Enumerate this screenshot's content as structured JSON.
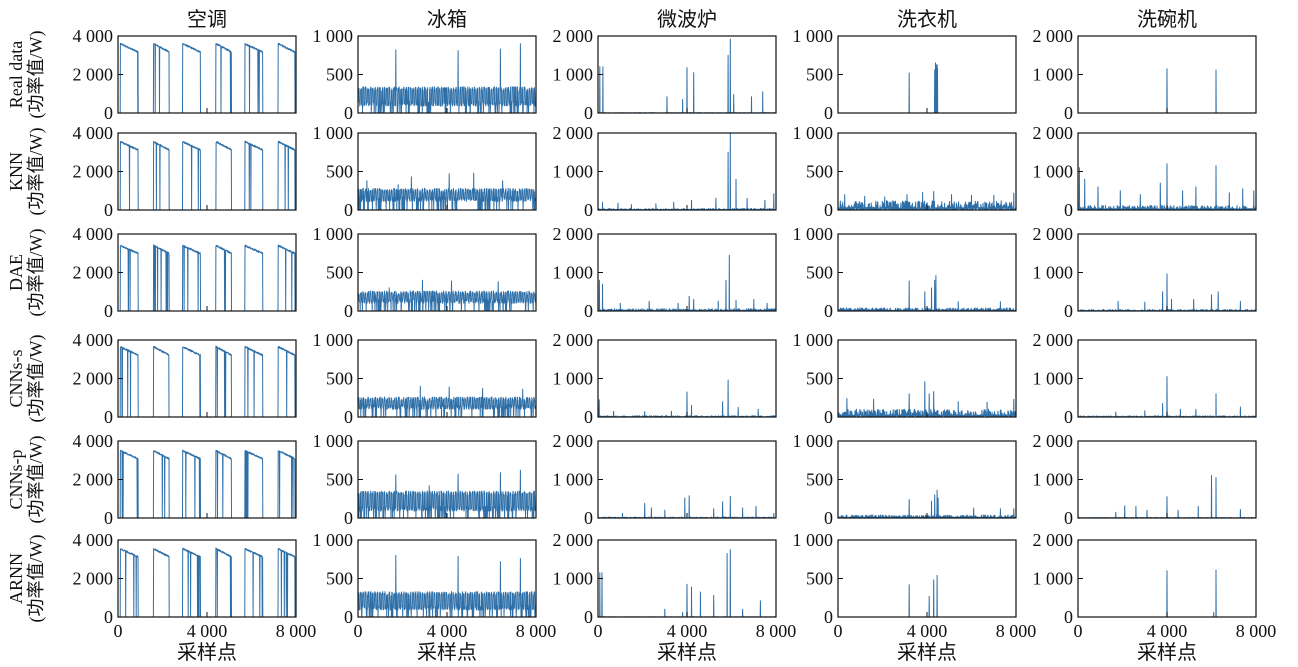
{
  "chart_data": {
    "type": "line",
    "shared_xlabel": "采样点",
    "ylabel_unit": "(功率值/W)",
    "xlim": [
      0,
      8000
    ],
    "xticks": [
      0,
      4000,
      8000
    ],
    "xtick_labels": [
      "0",
      "4 000",
      "8 000"
    ],
    "appliances": [
      {
        "name": "空调",
        "ylim": [
          0,
          4000
        ],
        "yticks": [
          0,
          2000,
          4000
        ],
        "ytick_labels": [
          "0",
          "2 000",
          "4 000"
        ]
      },
      {
        "name": "冰箱",
        "ylim": [
          0,
          1000
        ],
        "yticks": [
          0,
          500,
          1000
        ],
        "ytick_labels": [
          "0",
          "500",
          "1 000"
        ]
      },
      {
        "name": "微波炉",
        "ylim": [
          0,
          2000
        ],
        "yticks": [
          0,
          1000,
          2000
        ],
        "ytick_labels": [
          "0",
          "1 000",
          "2 000"
        ]
      },
      {
        "name": "洗衣机",
        "ylim": [
          0,
          1000
        ],
        "yticks": [
          0,
          500,
          1000
        ],
        "ytick_labels": [
          "0",
          "500",
          "1 000"
        ]
      },
      {
        "name": "洗碗机",
        "ylim": [
          0,
          2000
        ],
        "yticks": [
          0,
          1000,
          2000
        ],
        "ytick_labels": [
          "0",
          "1 000",
          "2 000"
        ]
      }
    ],
    "methods": [
      "Real data",
      "KNN",
      "DAE",
      "CNNs-s",
      "CNNs-p",
      "ARNN"
    ],
    "series_profiles": {
      "ac_real": {
        "base": 3600,
        "on_segments": [
          [
            100,
            900
          ],
          [
            1600,
            2300
          ],
          [
            2900,
            3700
          ],
          [
            4400,
            5100
          ],
          [
            5700,
            6500
          ],
          [
            7200,
            7950
          ]
        ],
        "dropout_count": 22
      },
      "ac_knn": {
        "base": 3550,
        "on_segments": [
          [
            100,
            900
          ],
          [
            1600,
            2300
          ],
          [
            2900,
            3700
          ],
          [
            4400,
            5100
          ],
          [
            5700,
            6500
          ],
          [
            7200,
            7950
          ]
        ],
        "dropout_count": 25
      },
      "ac_dae": {
        "base": 3400,
        "on_segments": [
          [
            100,
            900
          ],
          [
            1600,
            2300
          ],
          [
            2900,
            3700
          ],
          [
            4400,
            5100
          ],
          [
            5700,
            6500
          ],
          [
            7200,
            7950
          ]
        ],
        "dropout_count": 26
      },
      "ac_cnns": {
        "base": 3650,
        "on_segments": [
          [
            100,
            900
          ],
          [
            1600,
            2300
          ],
          [
            2900,
            3700
          ],
          [
            4400,
            5100
          ],
          [
            5700,
            6500
          ],
          [
            7200,
            7950
          ]
        ],
        "dropout_count": 28
      },
      "ac_cnnp": {
        "base": 3500,
        "on_segments": [
          [
            100,
            900
          ],
          [
            1600,
            2300
          ],
          [
            2900,
            3700
          ],
          [
            4400,
            5100
          ],
          [
            5700,
            6500
          ],
          [
            7200,
            7950
          ]
        ],
        "dropout_count": 24
      },
      "ac_arnn": {
        "base": 3550,
        "on_segments": [
          [
            100,
            900
          ],
          [
            1600,
            2300
          ],
          [
            2900,
            3700
          ],
          [
            4400,
            5100
          ],
          [
            5700,
            6500
          ],
          [
            7200,
            7950
          ]
        ],
        "dropout_count": 22
      },
      "fridge_real": {
        "level": 120,
        "high": 310,
        "spikes": [
          [
            1700,
            820
          ],
          [
            4500,
            810
          ],
          [
            6400,
            830
          ],
          [
            7300,
            900
          ],
          [
            1100,
            330
          ],
          [
            3900,
            330
          ]
        ]
      },
      "fridge_knn": {
        "level": 140,
        "high": 250,
        "spikes": [
          [
            400,
            380
          ],
          [
            2400,
            430
          ],
          [
            4100,
            470
          ],
          [
            5200,
            480
          ],
          [
            6500,
            380
          ],
          [
            1800,
            330
          ]
        ]
      },
      "fridge_dae": {
        "level": 130,
        "high": 230,
        "spikes": [
          [
            2900,
            400
          ],
          [
            4200,
            390
          ],
          [
            6300,
            380
          ],
          [
            1400,
            300
          ]
        ]
      },
      "fridge_cnns": {
        "level": 130,
        "high": 230,
        "spikes": [
          [
            2800,
            400
          ],
          [
            4100,
            390
          ],
          [
            5600,
            370
          ],
          [
            7400,
            360
          ]
        ]
      },
      "fridge_cnnp": {
        "level": 120,
        "high": 320,
        "spikes": [
          [
            1700,
            560
          ],
          [
            4500,
            570
          ],
          [
            6400,
            590
          ],
          [
            7300,
            620
          ],
          [
            3200,
            420
          ]
        ]
      },
      "fridge_arnn": {
        "level": 120,
        "high": 300,
        "spikes": [
          [
            1700,
            800
          ],
          [
            4500,
            790
          ],
          [
            6400,
            720
          ],
          [
            7300,
            760
          ],
          [
            4200,
            330
          ]
        ]
      },
      "micro_real": {
        "noise": 10,
        "spikes": [
          [
            80,
            1200
          ],
          [
            220,
            1200
          ],
          [
            3100,
            420
          ],
          [
            3800,
            350
          ],
          [
            4000,
            1180
          ],
          [
            4300,
            1050
          ],
          [
            5850,
            1500
          ],
          [
            5950,
            1920
          ],
          [
            6100,
            480
          ],
          [
            6900,
            420
          ],
          [
            7400,
            550
          ]
        ]
      },
      "micro_knn": {
        "noise": 40,
        "spikes": [
          [
            200,
            200
          ],
          [
            900,
            180
          ],
          [
            1500,
            140
          ],
          [
            2600,
            160
          ],
          [
            3400,
            200
          ],
          [
            4200,
            250
          ],
          [
            5300,
            300
          ],
          [
            5850,
            1500
          ],
          [
            5950,
            2000
          ],
          [
            6200,
            800
          ],
          [
            6700,
            300
          ],
          [
            7500,
            250
          ],
          [
            7900,
            420
          ]
        ]
      },
      "micro_dae": {
        "noise": 60,
        "spikes": [
          [
            60,
            800
          ],
          [
            200,
            700
          ],
          [
            1000,
            200
          ],
          [
            2300,
            250
          ],
          [
            3600,
            200
          ],
          [
            4100,
            380
          ],
          [
            4300,
            300
          ],
          [
            5400,
            260
          ],
          [
            5750,
            800
          ],
          [
            5900,
            1450
          ],
          [
            6200,
            280
          ],
          [
            7000,
            300
          ],
          [
            7600,
            200
          ]
        ]
      },
      "micro_cnns": {
        "noise": 35,
        "spikes": [
          [
            50,
            450
          ],
          [
            700,
            150
          ],
          [
            2100,
            140
          ],
          [
            3300,
            150
          ],
          [
            4000,
            650
          ],
          [
            4200,
            300
          ],
          [
            5600,
            400
          ],
          [
            5850,
            960
          ],
          [
            6300,
            250
          ],
          [
            7200,
            200
          ]
        ]
      },
      "micro_cnnp": {
        "noise": 25,
        "spikes": [
          [
            1100,
            120
          ],
          [
            2100,
            380
          ],
          [
            2400,
            260
          ],
          [
            3000,
            200
          ],
          [
            3900,
            520
          ],
          [
            4100,
            580
          ],
          [
            5200,
            240
          ],
          [
            5600,
            420
          ],
          [
            5950,
            560
          ],
          [
            6500,
            260
          ],
          [
            7100,
            300
          ],
          [
            7900,
            120
          ]
        ]
      },
      "micro_arnn": {
        "noise": 8,
        "spikes": [
          [
            80,
            1150
          ],
          [
            180,
            1150
          ],
          [
            3000,
            200
          ],
          [
            3800,
            120
          ],
          [
            4000,
            850
          ],
          [
            4200,
            780
          ],
          [
            4600,
            650
          ],
          [
            5200,
            560
          ],
          [
            5800,
            1650
          ],
          [
            5950,
            1750
          ],
          [
            6500,
            200
          ],
          [
            7300,
            420
          ]
        ]
      },
      "washer_real": {
        "noise": 0,
        "spikes": [
          [
            3200,
            520
          ],
          [
            4350,
            560
          ],
          [
            4380,
            650
          ],
          [
            4420,
            620
          ],
          [
            4450,
            630
          ],
          [
            4470,
            580
          ]
        ]
      },
      "washer_knn": {
        "noise": 120,
        "spikes": [
          [
            300,
            200
          ],
          [
            1200,
            180
          ],
          [
            2100,
            170
          ],
          [
            3100,
            200
          ],
          [
            3800,
            230
          ],
          [
            4300,
            240
          ],
          [
            5100,
            200
          ],
          [
            6000,
            190
          ],
          [
            7000,
            190
          ],
          [
            7900,
            220
          ]
        ]
      },
      "washer_dae": {
        "noise": 40,
        "spikes": [
          [
            3200,
            390
          ],
          [
            3900,
            250
          ],
          [
            4200,
            300
          ],
          [
            4350,
            400
          ],
          [
            4400,
            460
          ],
          [
            5400,
            120
          ],
          [
            7300,
            120
          ]
        ]
      },
      "washer_cnns": {
        "noise": 100,
        "spikes": [
          [
            400,
            240
          ],
          [
            1600,
            230
          ],
          [
            3200,
            300
          ],
          [
            3900,
            460
          ],
          [
            4100,
            300
          ],
          [
            4300,
            330
          ],
          [
            5400,
            200
          ],
          [
            6700,
            190
          ],
          [
            7900,
            230
          ]
        ]
      },
      "washer_cnnp": {
        "noise": 40,
        "spikes": [
          [
            3200,
            240
          ],
          [
            4200,
            220
          ],
          [
            4350,
            300
          ],
          [
            4450,
            360
          ],
          [
            4500,
            260
          ],
          [
            6100,
            130
          ],
          [
            7300,
            120
          ],
          [
            7900,
            120
          ]
        ]
      },
      "washer_arnn": {
        "noise": 0,
        "spikes": [
          [
            3200,
            420
          ],
          [
            4100,
            270
          ],
          [
            4300,
            480
          ],
          [
            4450,
            540
          ]
        ]
      },
      "dish_real": {
        "noise": 0,
        "spikes": [
          [
            4000,
            1150
          ],
          [
            6200,
            1120
          ]
        ]
      },
      "dish_knn": {
        "noise": 120,
        "spikes": [
          [
            60,
            1100
          ],
          [
            300,
            800
          ],
          [
            900,
            600
          ],
          [
            1900,
            500
          ],
          [
            2800,
            400
          ],
          [
            3700,
            700
          ],
          [
            4000,
            1200
          ],
          [
            4700,
            500
          ],
          [
            5300,
            600
          ],
          [
            6200,
            1150
          ],
          [
            6800,
            450
          ],
          [
            7400,
            550
          ],
          [
            7900,
            500
          ]
        ]
      },
      "dish_dae": {
        "noise": 40,
        "spikes": [
          [
            1800,
            250
          ],
          [
            3000,
            230
          ],
          [
            3800,
            500
          ],
          [
            4000,
            960
          ],
          [
            4200,
            300
          ],
          [
            5200,
            300
          ],
          [
            6000,
            420
          ],
          [
            6300,
            500
          ],
          [
            7300,
            250
          ]
        ]
      },
      "dish_cnns": {
        "noise": 30,
        "spikes": [
          [
            1700,
            130
          ],
          [
            3000,
            160
          ],
          [
            3800,
            350
          ],
          [
            4000,
            1050
          ],
          [
            4600,
            200
          ],
          [
            5300,
            200
          ],
          [
            6200,
            600
          ],
          [
            7300,
            260
          ]
        ]
      },
      "dish_cnnp": {
        "noise": 15,
        "spikes": [
          [
            1700,
            150
          ],
          [
            2100,
            320
          ],
          [
            2600,
            300
          ],
          [
            3100,
            200
          ],
          [
            4000,
            550
          ],
          [
            4500,
            200
          ],
          [
            5400,
            300
          ],
          [
            6000,
            1100
          ],
          [
            6200,
            1050
          ],
          [
            7300,
            220
          ]
        ]
      },
      "dish_arnn": {
        "noise": 0,
        "spikes": [
          [
            4000,
            1200
          ],
          [
            6100,
            120
          ],
          [
            6200,
            1220
          ]
        ]
      }
    },
    "grid": [
      [
        "ac_real",
        "fridge_real",
        "micro_real",
        "washer_real",
        "dish_real"
      ],
      [
        "ac_knn",
        "fridge_knn",
        "micro_knn",
        "washer_knn",
        "dish_knn"
      ],
      [
        "ac_dae",
        "fridge_dae",
        "micro_dae",
        "washer_dae",
        "dish_dae"
      ],
      [
        "ac_cnns",
        "fridge_cnns",
        "micro_cnns",
        "washer_cnns",
        "dish_cnns"
      ],
      [
        "ac_cnnp",
        "fridge_cnnp",
        "micro_cnnp",
        "washer_cnnp",
        "dish_cnnp"
      ],
      [
        "ac_arnn",
        "fridge_arnn",
        "micro_arnn",
        "washer_arnn",
        "dish_arnn"
      ]
    ],
    "series_color": "#2e6fa8"
  }
}
